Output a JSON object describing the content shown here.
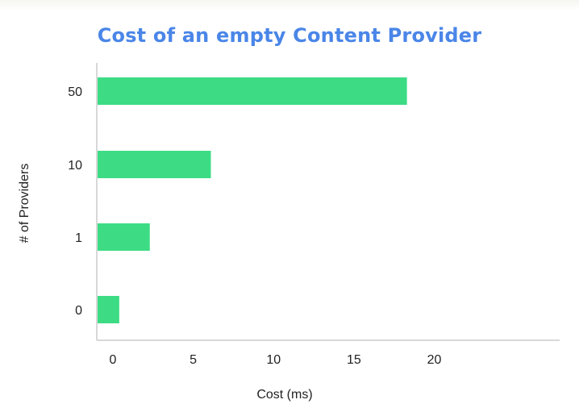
{
  "chart_data": {
    "type": "bar",
    "orientation": "horizontal",
    "title": "Cost of an empty Content Provider",
    "xlabel": "Cost (ms)",
    "ylabel": "# of Providers",
    "categories": [
      "50",
      "10",
      "1",
      "0"
    ],
    "values": [
      18.3,
      6.1,
      2.3,
      0.4
    ],
    "xlim": [
      -1,
      27.8
    ],
    "xticks": [
      "0",
      "5",
      "10",
      "15",
      "20"
    ],
    "grid": false,
    "legend": "none",
    "colors": {
      "bar": "#3ddc84",
      "title": "#4a86e8",
      "axis": "#cccccc",
      "text": "#222222"
    }
  }
}
